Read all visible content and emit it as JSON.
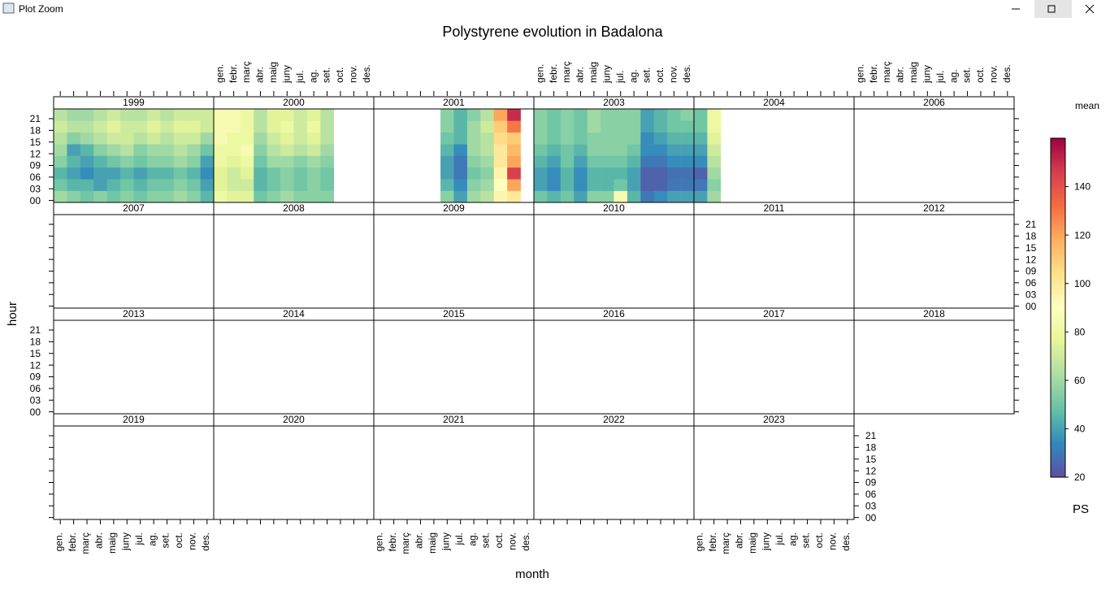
{
  "window": {
    "title": "Plot Zoom"
  },
  "chart_data": {
    "type": "heatmap",
    "title": "Polystyrene evolution in Badalona",
    "xlabel": "month",
    "ylabel": "hour",
    "colorbar_title": "mean",
    "colorbar_label": "PS",
    "xlim": [
      0.5,
      12.5
    ],
    "xticks": [
      {
        "value": 1,
        "label": "gen."
      },
      {
        "value": 2,
        "label": "febr."
      },
      {
        "value": 3,
        "label": "març"
      },
      {
        "value": 4,
        "label": "abr."
      },
      {
        "value": 5,
        "label": "maig"
      },
      {
        "value": 6,
        "label": "juny"
      },
      {
        "value": 7,
        "label": "jul."
      },
      {
        "value": 8,
        "label": "ag."
      },
      {
        "value": 9,
        "label": "set."
      },
      {
        "value": 10,
        "label": "oct."
      },
      {
        "value": 11,
        "label": "nov."
      },
      {
        "value": 12,
        "label": "des."
      }
    ],
    "ylim": [
      -0.5,
      23.5
    ],
    "yticks": [
      {
        "value": 0,
        "label": "00"
      },
      {
        "value": 3,
        "label": "03"
      },
      {
        "value": 6,
        "label": "06"
      },
      {
        "value": 9,
        "label": "09"
      },
      12,
      15,
      18,
      21
    ],
    "zlim": [
      20,
      160
    ],
    "zticks": [
      20,
      40,
      60,
      80,
      100,
      120,
      140
    ],
    "colormap": [
      "#5E4FA2",
      "#3288BD",
      "#66C2A5",
      "#ABDDA4",
      "#E6F598",
      "#FFFFBF",
      "#FEE08B",
      "#FDAE61",
      "#F46D43",
      "#D53E4F",
      "#9E0142"
    ],
    "panels": [
      {
        "label": "1999",
        "values": [
          [
            60,
            55,
            50,
            55,
            50,
            55,
            50,
            55,
            55,
            60,
            55,
            45
          ],
          [
            50,
            45,
            45,
            40,
            45,
            50,
            45,
            50,
            50,
            55,
            50,
            40
          ],
          [
            45,
            40,
            35,
            40,
            40,
            45,
            40,
            45,
            45,
            50,
            45,
            35
          ],
          [
            55,
            45,
            40,
            45,
            50,
            55,
            50,
            55,
            55,
            60,
            55,
            40
          ],
          [
            60,
            40,
            45,
            55,
            60,
            65,
            55,
            60,
            60,
            65,
            60,
            50
          ],
          [
            65,
            55,
            60,
            65,
            70,
            70,
            65,
            70,
            65,
            70,
            70,
            60
          ],
          [
            70,
            65,
            65,
            70,
            75,
            70,
            70,
            75,
            70,
            75,
            75,
            70
          ],
          [
            65,
            60,
            60,
            65,
            70,
            65,
            65,
            70,
            65,
            70,
            70,
            70
          ]
        ]
      },
      {
        "label": "2000",
        "values": [
          [
            80,
            75,
            75,
            50,
            55,
            60,
            55,
            55,
            55,
            null,
            null,
            null
          ],
          [
            75,
            70,
            70,
            45,
            50,
            55,
            50,
            55,
            50,
            null,
            null,
            null
          ],
          [
            75,
            70,
            75,
            45,
            50,
            55,
            50,
            55,
            50,
            null,
            null,
            null
          ],
          [
            80,
            75,
            80,
            50,
            60,
            60,
            55,
            60,
            55,
            null,
            null,
            null
          ],
          [
            80,
            80,
            85,
            55,
            65,
            70,
            65,
            70,
            60,
            null,
            null,
            null
          ],
          [
            85,
            80,
            80,
            60,
            70,
            75,
            70,
            75,
            65,
            null,
            null,
            null
          ],
          [
            85,
            85,
            80,
            65,
            75,
            80,
            70,
            80,
            65,
            null,
            null,
            null
          ],
          [
            85,
            85,
            80,
            65,
            75,
            75,
            70,
            75,
            65,
            null,
            null,
            null
          ]
        ]
      },
      {
        "label": "2001",
        "values": [
          [
            null,
            null,
            null,
            null,
            null,
            55,
            40,
            60,
            65,
            95,
            100,
            null
          ],
          [
            null,
            null,
            null,
            null,
            null,
            45,
            35,
            55,
            60,
            90,
            120,
            null
          ],
          [
            null,
            null,
            null,
            null,
            null,
            40,
            30,
            50,
            55,
            95,
            145,
            null
          ],
          [
            null,
            null,
            null,
            null,
            null,
            40,
            30,
            55,
            60,
            100,
            120,
            null
          ],
          [
            null,
            null,
            null,
            null,
            null,
            45,
            35,
            60,
            65,
            100,
            115,
            null
          ],
          [
            null,
            null,
            null,
            null,
            null,
            50,
            45,
            60,
            65,
            105,
            110,
            null
          ],
          [
            null,
            null,
            null,
            null,
            null,
            55,
            45,
            60,
            70,
            110,
            130,
            null
          ],
          [
            null,
            null,
            null,
            null,
            null,
            55,
            45,
            55,
            65,
            120,
            150,
            null
          ]
        ]
      },
      {
        "label": "2003",
        "values": [
          [
            50,
            45,
            50,
            40,
            55,
            55,
            85,
            45,
            30,
            35,
            40,
            40
          ],
          [
            40,
            35,
            45,
            35,
            45,
            45,
            50,
            40,
            25,
            25,
            30,
            30
          ],
          [
            40,
            35,
            45,
            35,
            45,
            45,
            45,
            40,
            25,
            25,
            28,
            28
          ],
          [
            45,
            40,
            50,
            40,
            50,
            50,
            50,
            45,
            30,
            30,
            35,
            35
          ],
          [
            50,
            45,
            50,
            45,
            55,
            55,
            55,
            50,
            35,
            35,
            40,
            40
          ],
          [
            55,
            50,
            55,
            50,
            55,
            55,
            55,
            55,
            35,
            40,
            45,
            45
          ],
          [
            55,
            50,
            55,
            50,
            60,
            55,
            55,
            55,
            40,
            45,
            50,
            50
          ],
          [
            55,
            50,
            55,
            50,
            60,
            55,
            55,
            55,
            40,
            45,
            50,
            55
          ]
        ]
      },
      {
        "label": "2004",
        "values": [
          [
            40,
            60,
            null,
            null,
            null,
            null,
            null,
            null,
            null,
            null,
            null,
            null
          ],
          [
            30,
            55,
            null,
            null,
            null,
            null,
            null,
            null,
            null,
            null,
            null,
            null
          ],
          [
            25,
            60,
            null,
            null,
            null,
            null,
            null,
            null,
            null,
            null,
            null,
            null
          ],
          [
            35,
            65,
            null,
            null,
            null,
            null,
            null,
            null,
            null,
            null,
            null,
            null
          ],
          [
            40,
            70,
            null,
            null,
            null,
            null,
            null,
            null,
            null,
            null,
            null,
            null
          ],
          [
            45,
            75,
            null,
            null,
            null,
            null,
            null,
            null,
            null,
            null,
            null,
            null
          ],
          [
            50,
            80,
            null,
            null,
            null,
            null,
            null,
            null,
            null,
            null,
            null,
            null
          ],
          [
            50,
            80,
            null,
            null,
            null,
            null,
            null,
            null,
            null,
            null,
            null,
            null
          ]
        ]
      },
      {
        "label": "2006"
      },
      {
        "label": "2007"
      },
      {
        "label": "2008"
      },
      {
        "label": "2009"
      },
      {
        "label": "2010"
      },
      {
        "label": "2011"
      },
      {
        "label": "2012"
      },
      {
        "label": "2013"
      },
      {
        "label": "2014"
      },
      {
        "label": "2015"
      },
      {
        "label": "2016"
      },
      {
        "label": "2017"
      },
      {
        "label": "2018"
      },
      {
        "label": "2019"
      },
      {
        "label": "2020"
      },
      {
        "label": "2021"
      },
      {
        "label": "2022"
      },
      {
        "label": "2023"
      }
    ]
  }
}
